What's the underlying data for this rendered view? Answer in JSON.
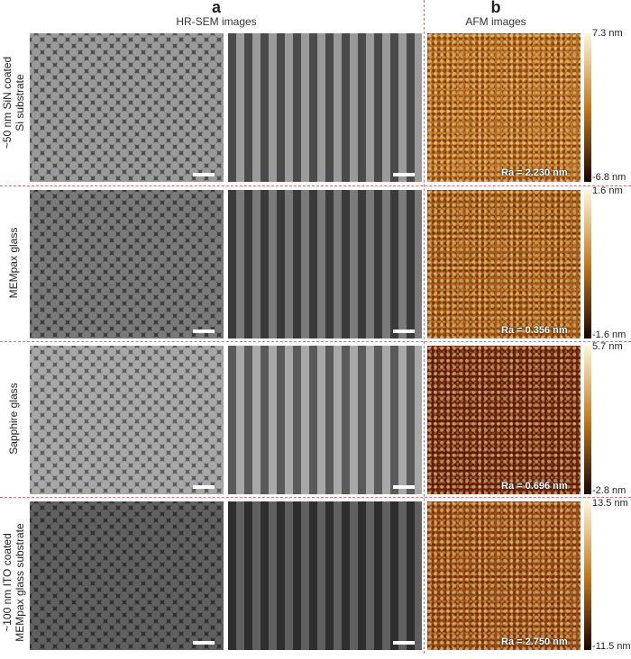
{
  "panels": {
    "a": {
      "letter": "a",
      "title": "HR-SEM images"
    },
    "b": {
      "letter": "b",
      "title": "AFM images"
    }
  },
  "rows": [
    {
      "label_line1": "~50 nm SiN coated",
      "label_line2": "Si substrate",
      "ra": "Ra = 2.230 nm",
      "cbar_max": "7.3 nm",
      "cbar_min": "-6.8 nm",
      "sem_tone": "#4a4a4a",
      "dot_tone": "#9a9a9a",
      "afm_base": "#b86a1a"
    },
    {
      "label_line1": "MEMpax glass",
      "label_line2": "",
      "ra": "Ra = 0.356 nm",
      "cbar_max": "1.6 nm",
      "cbar_min": "-1.6 nm",
      "sem_tone": "#3a3a3a",
      "dot_tone": "#7a7a7a",
      "afm_base": "#a65a12"
    },
    {
      "label_line1": "Sapphire glass",
      "label_line2": "",
      "ra": "Ra = 0.696 nm",
      "cbar_max": "5.7 nm",
      "cbar_min": "-2.8 nm",
      "sem_tone": "#5a5a5a",
      "dot_tone": "#a8a8a8",
      "afm_base": "#6a1e06"
    },
    {
      "label_line1": "~100 nm ITO coated",
      "label_line2": "MEMpax glass substrate",
      "ra": "Ra = 2.750 nm",
      "cbar_max": "13.5 nm",
      "cbar_min": "-11.5 nm",
      "sem_tone": "#2e2e2e",
      "dot_tone": "#606060",
      "afm_base": "#9a4a10"
    }
  ],
  "colors": {
    "divider": "#e07070",
    "colorbar_top": "#fff6d8",
    "colorbar_mid": "#c07a20",
    "colorbar_bottom": "#1a0500"
  }
}
